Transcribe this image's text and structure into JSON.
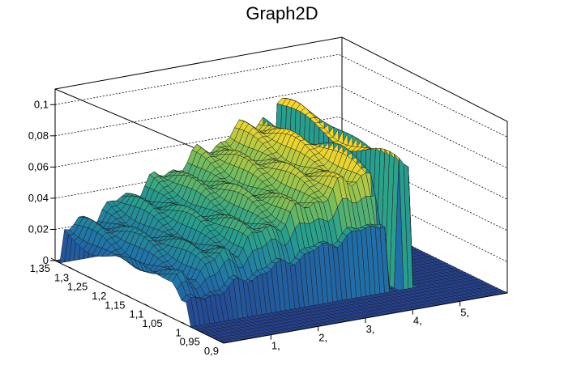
{
  "chart_data": {
    "type": "surface",
    "title": "Graph2D",
    "xlabel": "",
    "ylabel": "",
    "zlabel": "",
    "xlim": [
      0,
      6
    ],
    "ylim": [
      0.9,
      1.35
    ],
    "zlim": [
      0,
      0.11
    ],
    "x_ticks": [
      "1,",
      "2,",
      "3,",
      "4,",
      "5,"
    ],
    "y_ticks": [
      "0,9",
      "0,95",
      "1",
      "1,05",
      "1,1",
      "1,15",
      "1,2",
      "1,25",
      "1,3",
      "1,35"
    ],
    "z_ticks": [
      "0",
      "0,02",
      "0,04",
      "0,06",
      "0,08",
      "0,1"
    ],
    "grid": true,
    "colormap": "viridis-like (blue to green to yellow)",
    "surface_notes": "Surface value rises with x from ~0.02 to ~0.07; non-zero only for y between ~1.0 and ~1.35 and x below ~4.3, except a narrow ridge near x~4.5"
  }
}
